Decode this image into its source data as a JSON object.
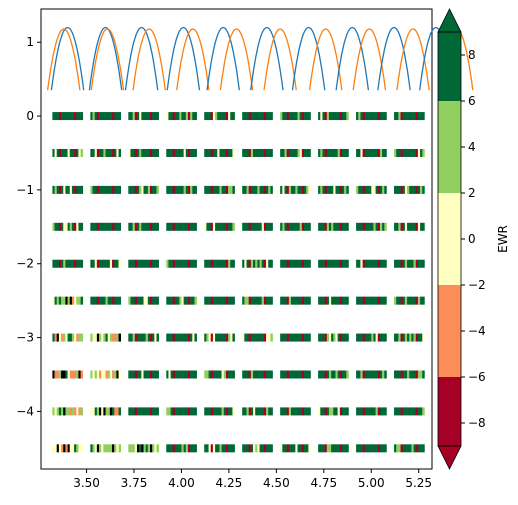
{
  "chart_data": [
    {
      "type": "line",
      "xticks": [
        3.5,
        3.75,
        4.0,
        4.25,
        4.5,
        4.75,
        5.0,
        5.25
      ],
      "xtick_labels": [
        "3.50",
        "3.75",
        "4.00",
        "4.25",
        "4.50",
        "4.75",
        "5.00",
        "5.25"
      ],
      "yticks": [
        1,
        0,
        -1,
        -2,
        -3,
        -4
      ],
      "ytick_labels": [
        "1",
        "0",
        "−1",
        "−2",
        "−3",
        "−4"
      ],
      "xlim": [
        3.26,
        5.32
      ],
      "ylim": [
        -4.78,
        1.45
      ],
      "grid": false,
      "columns_x": [
        3.4,
        3.6,
        3.8,
        4.0,
        4.2,
        4.4,
        4.6,
        4.8,
        5.0,
        5.2
      ],
      "arch_series": [
        {
          "color": "#1f77b4",
          "peak_offset": [
            0.0,
            0.0,
            -0.01,
            0.01,
            0.02,
            0.05,
            0.07,
            0.1,
            0.12,
            0.14
          ],
          "peak": 1.2,
          "base": 0.35
        },
        {
          "color": "#ff7f0e",
          "peak_offset": [
            -0.02,
            0.01,
            0.03,
            0.06,
            0.09,
            0.12,
            0.16,
            0.19,
            0.22,
            0.25
          ],
          "peak": 1.18,
          "base": 0.35
        }
      ],
      "strip_rows_y": [
        0,
        -0.5,
        -1,
        -1.5,
        -2,
        -2.5,
        -3,
        -3.5,
        -4,
        -4.5
      ]
    },
    {
      "type": "heatmap",
      "colorbar_label": "EWR",
      "ticks": [
        8,
        6,
        4,
        2,
        0,
        -2,
        -4,
        -6,
        -8
      ],
      "tick_labels": [
        "8",
        "6",
        "4",
        "2",
        "0",
        "−2",
        "−4",
        "−6",
        "−8"
      ],
      "levels": [
        -9,
        -6,
        -2,
        2,
        6,
        9
      ],
      "colors": [
        "#a50026",
        "#fc8d59",
        "#ffffbf",
        "#91cf60",
        "#006837"
      ],
      "extend": "both"
    }
  ]
}
